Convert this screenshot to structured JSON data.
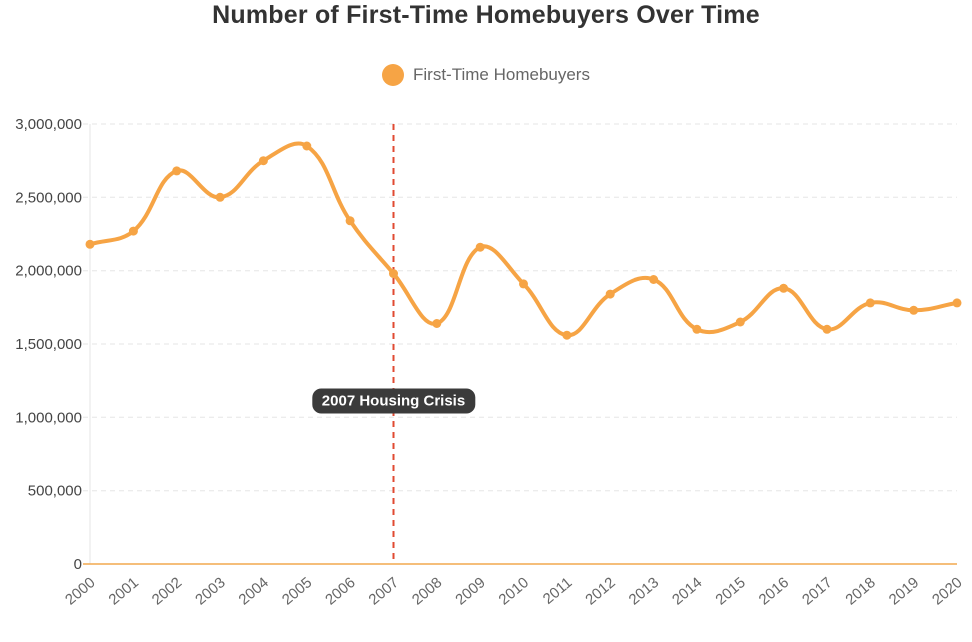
{
  "title": "Number of First-Time Homebuyers Over Time",
  "legend": {
    "label": "First-Time Homebuyers",
    "marker_color": "#F6A445"
  },
  "colors": {
    "line": "#F6A445",
    "point": "#F6A445",
    "axis_line": "#F2A94F",
    "grid": "#E6E6E6",
    "crisis_line": "#E04A32",
    "annotation_bg": "#3B3B3B",
    "annotation_text": "#FFFFFF",
    "title_text": "#333333",
    "ytick_text": "#444444",
    "xtick_text": "#666666",
    "legend_text": "#666666"
  },
  "chart_data": {
    "type": "line",
    "title": "Number of First-Time Homebuyers Over Time",
    "xlabel": "",
    "ylabel": "",
    "x": [
      "2000",
      "2001",
      "2002",
      "2003",
      "2004",
      "2005",
      "2006",
      "2007",
      "2008",
      "2009",
      "2010",
      "2011",
      "2012",
      "2013",
      "2014",
      "2015",
      "2016",
      "2017",
      "2018",
      "2019",
      "2020"
    ],
    "series": [
      {
        "name": "First-Time Homebuyers",
        "color": "#F6A445",
        "values": [
          2180000,
          2270000,
          2680000,
          2500000,
          2750000,
          2850000,
          2340000,
          1980000,
          1640000,
          2160000,
          1910000,
          1560000,
          1840000,
          1940000,
          1600000,
          1650000,
          1880000,
          1600000,
          1780000,
          1730000,
          1780000
        ]
      }
    ],
    "ylim": [
      0,
      3000000
    ],
    "ytick_step": 500000,
    "grid": true,
    "legend_position": "top",
    "line_smoothing": true,
    "annotation": {
      "label": "2007 Housing Crisis",
      "x": "2007"
    }
  }
}
